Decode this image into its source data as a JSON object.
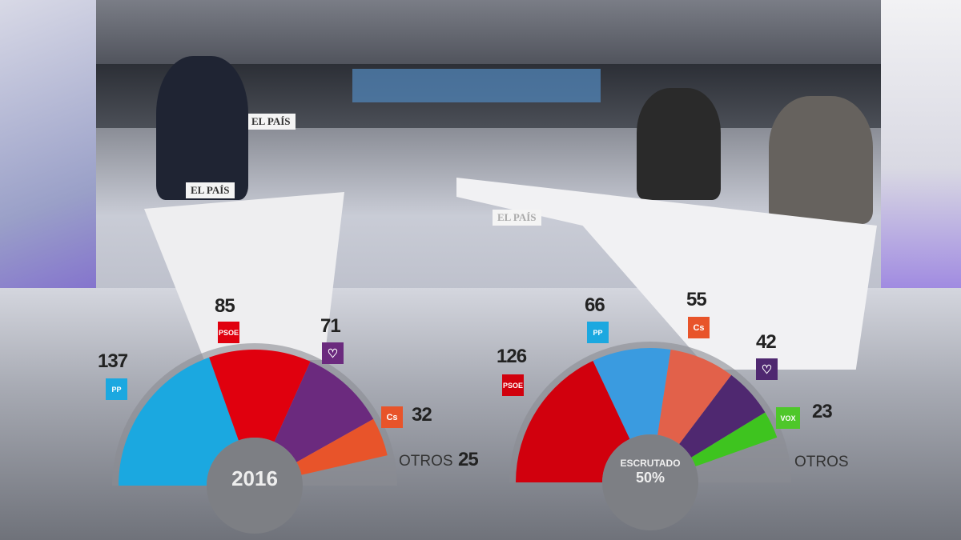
{
  "broadcast": {
    "desk_sign_left": "EL PAÍS",
    "desk_sign_right": "EL PAÍS",
    "wall_sign": "EL PAÍS"
  },
  "chart_data": [
    {
      "type": "pie",
      "subtype": "semicircle-parliament",
      "title": "2016",
      "total_seats": 350,
      "categories": [
        "PP",
        "PSOE",
        "Unidos Podemos",
        "Cs",
        "OTROS"
      ],
      "values": [
        137,
        85,
        71,
        32,
        25
      ],
      "colors": [
        "#1ba8e0",
        "#e0000e",
        "#6b2a7e",
        "#e8542a",
        "#8a8c92"
      ],
      "icons": [
        "pp-logo",
        "psoe-logo",
        "podemos-heart-logo",
        "cs-logo",
        ""
      ],
      "labels": [
        "137",
        "85",
        "71",
        "32",
        "25"
      ],
      "other_label": "OTROS"
    },
    {
      "type": "pie",
      "subtype": "semicircle-parliament",
      "title": "ESCRUTADO",
      "progress_label": "50%",
      "progress": 50,
      "total_seats": 350,
      "categories": [
        "PSOE",
        "PP",
        "Cs",
        "Unidas Podemos",
        "VOX",
        "OTROS"
      ],
      "values": [
        126,
        66,
        55,
        42,
        23,
        null
      ],
      "colors": [
        "#d1000d",
        "#3a9be0",
        "#e2614a",
        "#4f2870",
        "#3ec41f",
        "#8a8c92"
      ],
      "icons": [
        "psoe-logo",
        "pp-logo",
        "cs-logo",
        "podemos-heart-logo",
        "vox-logo",
        ""
      ],
      "labels": [
        "126",
        "66",
        "55",
        "42",
        "23",
        ""
      ],
      "other_label": "OTROS"
    }
  ],
  "logo_text": {
    "psoe": "PSOE",
    "cs": "Cs",
    "vox": "VOX",
    "pp": "PP"
  }
}
